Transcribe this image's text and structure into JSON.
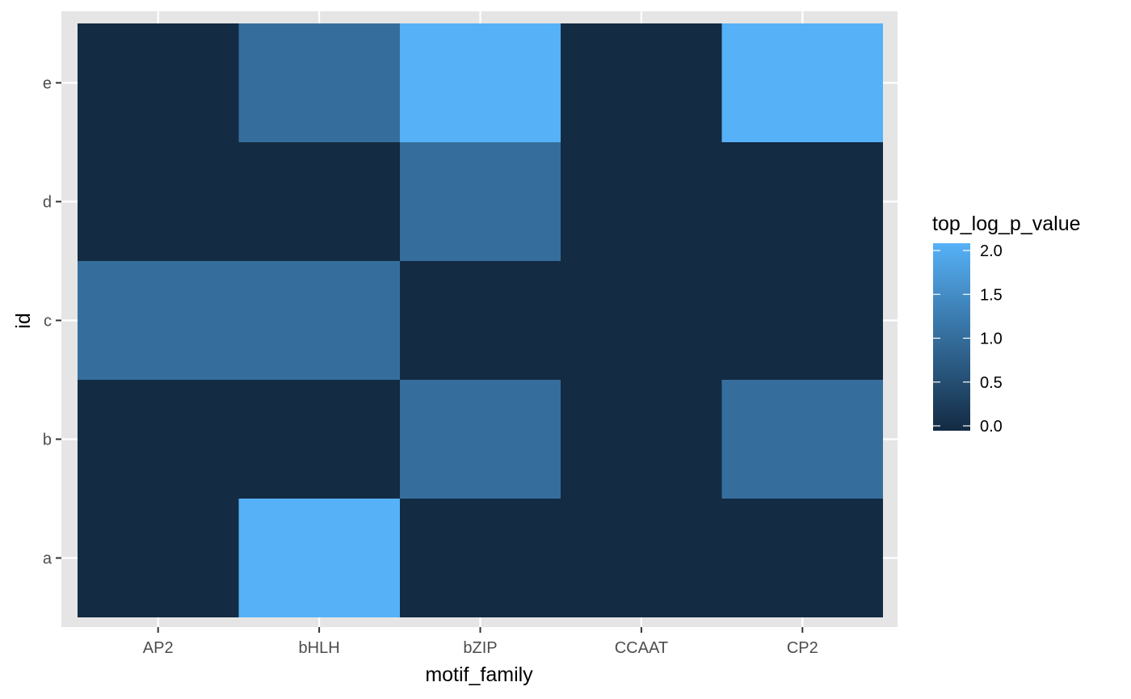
{
  "chart_data": {
    "type": "heatmap",
    "title": "",
    "xlabel": "motif_family",
    "ylabel": "id",
    "x_categories": [
      "AP2",
      "bHLH",
      "bZIP",
      "CCAAT",
      "CP2"
    ],
    "y_categories": [
      "a",
      "b",
      "c",
      "d",
      "e"
    ],
    "values": [
      [
        0,
        2,
        0,
        0,
        0
      ],
      [
        0,
        0,
        1,
        0,
        1
      ],
      [
        1,
        1,
        0,
        0,
        0
      ],
      [
        0,
        0,
        1,
        0,
        0
      ],
      [
        0,
        1,
        2,
        0,
        2
      ]
    ],
    "grid": true,
    "legend": {
      "title": "top_log_p_value",
      "position": "right",
      "range": [
        0,
        2
      ],
      "ticks": [
        0.0,
        0.5,
        1.0,
        1.5,
        2.0
      ],
      "tick_labels": [
        "0.0",
        "0.5",
        "1.0",
        "1.5",
        "2.0"
      ],
      "color_low": "#132B43",
      "color_high": "#56B1F7"
    },
    "panel_background": "#e5e5e5",
    "grid_color": "#ffffff"
  }
}
